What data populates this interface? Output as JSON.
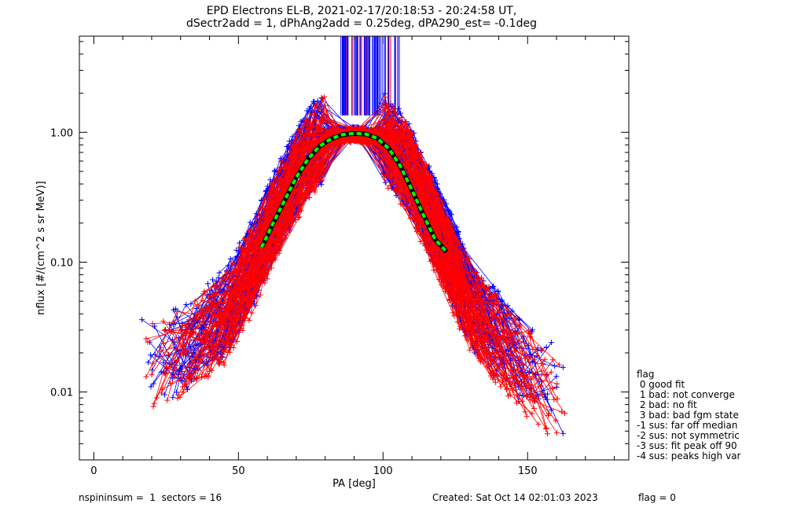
{
  "title_line1": "EPD Electrons EL-B, 2021-02-17/20:18:53 - 20:24:58 UT,",
  "title_line2": "dSectr2add = 1, dPhAng2add = 0.25deg, dPA290_est=  -0.1deg",
  "footer_left": "nspininsum =  1  sectors = 16",
  "footer_created": "Created: Sat Oct 14 02:01:03 2023",
  "footer_flag": "flag = 0",
  "legend": {
    "title": "flag",
    "items": [
      " 0 good fit",
      " 1 bad: not converge",
      " 2 bad: no fit",
      " 3 bad: bad fgm state",
      "-1 sus: far off median",
      "-2 sus: not symmetric",
      "-3 sus: fit peak off 90",
      "-4 sus: peaks high var"
    ]
  },
  "colors": {
    "series_a": "#0000ff",
    "series_b": "#ff0000",
    "fit": "#00ff00",
    "fit_outline": "#000000"
  },
  "chart_data": {
    "type": "line",
    "title": "EPD Electrons EL-B, 2021-02-17/20:18:53 - 20:24:58 UT,",
    "subtitle": "dSectr2add = 1, dPhAng2add = 0.25deg, dPA290_est=  -0.1deg",
    "xlabel": "PA [deg]",
    "ylabel": "nflux [#/(cm^2 s sr MeV)]",
    "xlim": [
      -5,
      185
    ],
    "ylim": [
      0.003,
      5.5
    ],
    "yscale": "log",
    "xticks": [
      0,
      50,
      100,
      150
    ],
    "xtick_labels": [
      "0",
      "50",
      "100",
      "150"
    ],
    "yticks": [
      0.01,
      0.1,
      1.0
    ],
    "ytick_labels": [
      "0.01",
      "0.10",
      "1.00"
    ],
    "grid": false,
    "legend_position": "right",
    "fit_curve": {
      "pa": [
        58,
        62,
        66,
        70,
        74,
        78,
        82,
        86,
        90,
        94,
        98,
        102,
        106,
        110,
        114,
        118,
        122
      ],
      "nflux": [
        0.13,
        0.2,
        0.3,
        0.45,
        0.62,
        0.78,
        0.89,
        0.96,
        0.98,
        0.97,
        0.9,
        0.75,
        0.55,
        0.36,
        0.23,
        0.15,
        0.12
      ]
    },
    "series": [
      {
        "color": "#0000ff",
        "envelope_pa": [
          19,
          30,
          45,
          55,
          65,
          75,
          82,
          90,
          100,
          108,
          118,
          130,
          145,
          160
        ],
        "envelope_nflux": [
          0.02,
          0.02,
          0.04,
          0.1,
          0.3,
          0.75,
          0.95,
          0.97,
          0.92,
          0.6,
          0.2,
          0.05,
          0.02,
          0.01
        ]
      },
      {
        "color": "#ff0000",
        "envelope_pa": [
          19,
          30,
          45,
          55,
          65,
          75,
          82,
          90,
          100,
          108,
          118,
          130,
          145,
          160
        ],
        "envelope_nflux": [
          0.015,
          0.02,
          0.035,
          0.09,
          0.28,
          0.7,
          0.93,
          0.96,
          0.9,
          0.55,
          0.18,
          0.045,
          0.018,
          0.008
        ]
      }
    ],
    "spikes": {
      "pa_min": 85,
      "pa_max": 106,
      "nflux_bottom": 1.35
    }
  }
}
